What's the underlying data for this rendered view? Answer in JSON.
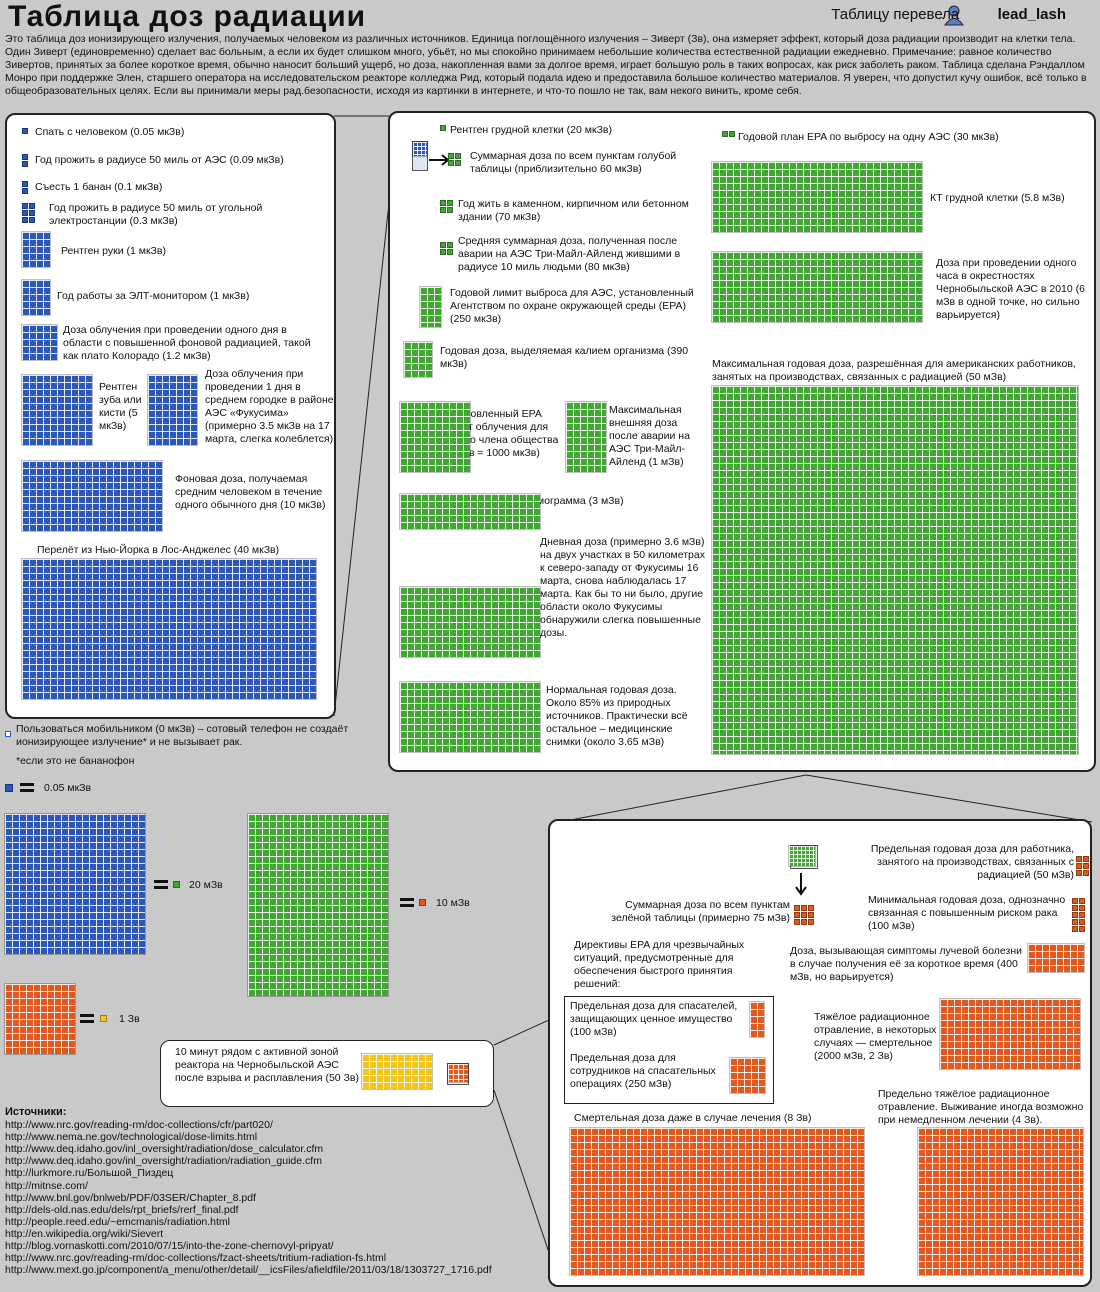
{
  "header": {
    "title": "Таблица доз радиации",
    "credit_prefix": "Таблицу перевела",
    "credit_user": "lead_lash"
  },
  "intro": "Это таблица доз ионизирующего излучения, получаемых человеком из различных источников. Единица поглощённого излучения – Зиверт (Зв), она измеряет эффект, который доза радиации производит на клетки тела. Один Зиверт (единовременно) сделает вас больным, а если их будет слишком много, убьёт, но мы спокойно принимаем небольшие количества естественной радиации ежедневно. Примечание: равное количество Зивертов, принятых за более короткое время, обычно наносит больший ущерб, но доза, накопленная вами за долгое время, играет большую роль в таких вопросах, как риск заболеть раком. Таблица сделана Рэндаллом Монро при поддержке Элен, старшего оператора на исследовательском реакторе колледжа Рид, который подала идею и предоставила большое количество материалов. Я уверен, что допустил кучу ошибок, всё только в общеобразовательных целях. Если вы принимали меры рад.безопасности, исходя из картинки в интернете, и что-то пошло не так, вам некого винить, кроме себя.",
  "colors": {
    "blue": "#2b57b8",
    "green": "#43a535",
    "orange": "#e05a1f",
    "yellow": "#f3c51c",
    "cellphone": "#ffffff"
  },
  "blue_panel": {
    "items": [
      "Спать с человеком (0.05 мкЗв)",
      "Год прожить в радиусе 50 миль от АЭС (0.09 мкЗв)",
      "Съесть 1 банан (0.1 мкЗв)",
      "Год прожить в радиусе 50 миль от угольной электростанции (0.3 мкЗв)",
      "Рентген руки (1 мкЗв)",
      "Год работы за ЭЛТ-монитором (1 мкЗв)",
      "Доза облучения при проведении одного дня в области с повышенной фоновой радиацией, такой как плато Колорадо (1.2 мкЗв)",
      "Рентген зуба или кисти (5 мкЗв)",
      "Доза облучения при проведении 1 дня в среднем городке в районе АЭС «Фукусима» (примерно 3.5 мкЗв на 17 марта, слегка колеблется)",
      "Фоновая доза, получаемая средним человеком в течение одного обычного дня (10 мкЗв)",
      "Перелёт из Нью-Йорка в Лос-Анджелес (40 мкЗв)"
    ]
  },
  "cellphone": {
    "text": "Пользоваться мобильником (0 мкЗв) – сотовый телефон не создаёт ионизирующее излучение* и не вызывает рак.",
    "footnote": "*если это не бананофон"
  },
  "green_panel": {
    "items": [
      "Рентген грудной клетки (20 мкЗв)",
      "Суммарная доза по всем пунктам голубой таблицы (приблизительно 60 мкЗв)",
      "Год жить в каменном, кирпичном или бетонном здании (70 мкЗв)",
      "Средняя суммарная доза, полученная после аварии на АЭС Три-Майл-Айленд жившими в радиусе 10 миль людьми (80 мкЗв)",
      "Годовой лимит выброса для АЭС, установленный Агентством по охране окружающей среды (EPA) (250 мкЗв)",
      "Годовая доза, выделяемая калием организма (390 мкЗв)",
      "Установленный EPA лимит облучения для одного члена общества (1 мЗв = 1000 мкЗв)",
      "Максимальная внешняя доза после аварии на АЭС Три-Майл-Айленд (1 мЗв)",
      "Маммограмма (3 мЗв)",
      "Дневная доза (примерно 3.6 мЗв) на двух участках в 50 километрах к северо-западу от Фукусимы 16 марта, снова наблюдалась 17 марта. Как бы то ни было, другие области около Фукусимы обнаружили слегка повышенные дозы.",
      "Нормальная годовая доза. Около 85% из природных источников. Практически всё остальное – медицинские снимки (около 3.65 мЗв)",
      "Годовой план EPA по выбросу на одну АЭС (30  мкЗв)",
      "КТ грудной клетки (5.8 мЗв)",
      "Доза при проведении одного часа в окрестностях Чернобыльской АЭС в 2010 (6 мЗв в одной точке, но сильно варьируется)",
      "Максимальная годовая доза, разрешённая для американских работников, занятых на производствах, связанных с радиацией (50 мЗв)"
    ]
  },
  "legend": {
    "unit": "0.05 мкЗв",
    "green_eq": "20 мЗв",
    "orange_eq": "10 мЗв",
    "yellow_eq": "1 Зв"
  },
  "chernobyl": {
    "text": "10 минут рядом с активной зоной реактора на Чернобыльской АЭС после взрыва и расплавления (50 Зв)"
  },
  "orange_panel": {
    "items": [
      "Предельная годовая доза для работника, занятого на производствах, связанных с радиацией (50 мЗв)",
      "Суммарная доза по всем пунктам зелёной таблицы (примерно 75 мЗв)",
      "Минимальная годовая доза, однозначно связанная с повышенным риском рака (100 мЗв)",
      "Директивы EPA для чрезвычайных ситуаций, предусмотренные для обеспечения быстрого принятия решений:",
      "Предельная доза для спасателей, защищающих ценное имущество (100 мЗв)",
      "Предельная доза для сотрудников на спасательных операциях (250 мЗв)",
      "Доза, вызывающая симптомы лучевой болезни в случае получения её за короткое время (400 мЗв, но варьируется)",
      "Тяжёлое радиационное отравление, в некоторых случаях — смертельное (2000 мЗв, 2 Зв)",
      "Предельно тяжёлое радиационное отравление. Выживание иногда возможно при немедленном лечении (4 Зв).",
      "Смертельная доза даже в случае лечения (8 Зв)"
    ]
  },
  "sources": {
    "title": "Источники:",
    "links": [
      "http://www.nrc.gov/reading-rm/doc-collections/cfr/part020/",
      "http://www.nema.ne.gov/technological/dose-limits.html",
      "http://www.deq.idaho.gov/inl_oversight/radiation/dose_calculator.cfm",
      "http://www.deq.idaho.gov/inl_oversight/radiation/radiation_guide.cfm",
      "http://lurkmore.ru/Большой_Пиздец",
      "http://mitnse.com/",
      "http://www.bnl.gov/bnlweb/PDF/03SER/Chapter_8.pdf",
      "http://dels-old.nas.edu/dels/rpt_briefs/rerf_final.pdf",
      "http://people.reed.edu/~emcmanis/radiation.html",
      "http://en.wikipedia.org/wiki/Sievert",
      "http://blog.vornaskotti.com/2010/07/15/into-the-zone-chernovyl-pripyat/",
      "http://www.nrc.gov/reading-rm/doc-collections/fzact-sheets/tritium-radiation-fs.html",
      "http://www.mext.go.jp/component/a_menu/other/detail/__icsFiles/afieldfile/2011/03/18/1303727_1716.pdf"
    ]
  }
}
